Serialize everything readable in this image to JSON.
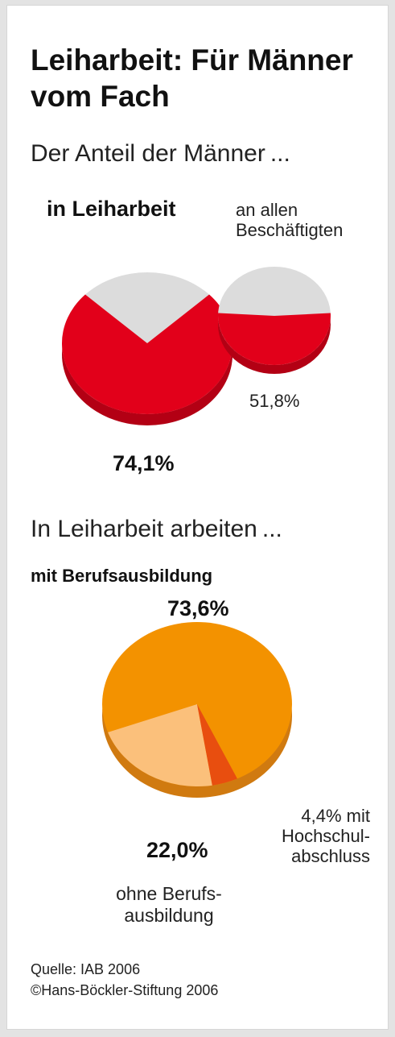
{
  "title": "Leiharbeit: Für Männer vom Fach",
  "subtitle_1": "Der Anteil der Männer ...",
  "source_line": "Quelle: IAB 2006",
  "copyright_line": "©Hans-Böckler-Stiftung 2006",
  "chart_data": [
    {
      "type": "pie",
      "labels": [
        "in Leiharbeit"
      ],
      "values": [
        74.1
      ],
      "value_label": "74,1%",
      "unit": "%",
      "colors": {
        "share": "#e2001a",
        "rest": "#dcdcdc"
      }
    },
    {
      "type": "pie",
      "labels": [
        "an allen Beschäftigten"
      ],
      "values": [
        51.8
      ],
      "value_label": "51,8%",
      "unit": "%",
      "colors": {
        "share": "#e2001a",
        "rest": "#dcdcdc"
      }
    },
    {
      "type": "pie",
      "title": "In Leiharbeit arbeiten ...",
      "categories": [
        "mit Berufsausbildung",
        "ohne Berufsausbildung",
        "mit Hochschulabschluss"
      ],
      "values": [
        73.6,
        22.0,
        4.4
      ],
      "value_labels": [
        "73,6%",
        "22,0%",
        "4,4% mit"
      ],
      "segment_labels": [
        "mit Berufsausbildung",
        "ohne Berufs-\nausbildung",
        "Hochschul-\nabschluss"
      ],
      "unit": "%",
      "colors": [
        "#f39200",
        "#fbc07b",
        "#e84e0f"
      ]
    }
  ]
}
